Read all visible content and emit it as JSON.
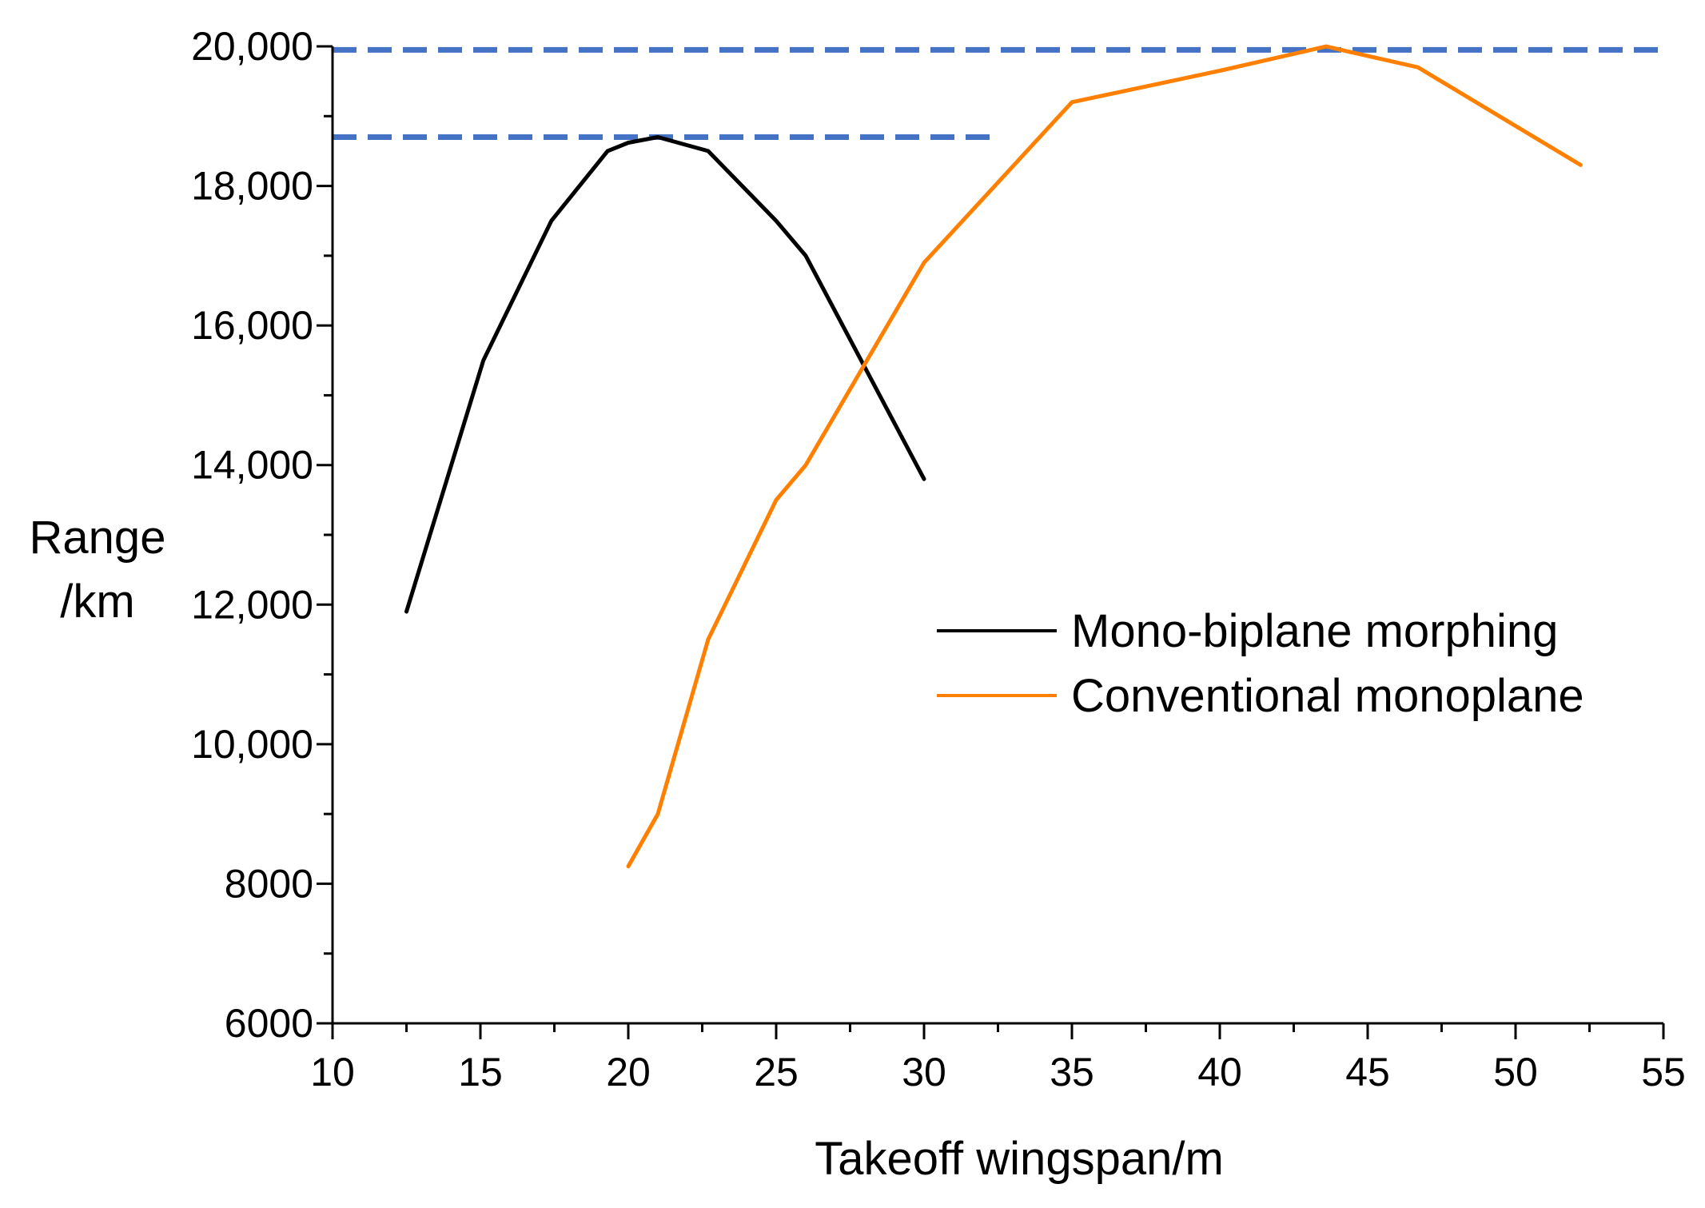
{
  "chart_data": {
    "type": "line",
    "title": "",
    "xlabel": "Takeoff wingspan/m",
    "ylabel": [
      "Range",
      "/km"
    ],
    "xlim": [
      10,
      55
    ],
    "ylim": [
      6000,
      20000
    ],
    "x_ticks": [
      10,
      15,
      20,
      25,
      30,
      35,
      40,
      45,
      50,
      55
    ],
    "x_tick_labels": [
      "10",
      "15",
      "20",
      "25",
      "30",
      "35",
      "40",
      "45",
      "50",
      "55"
    ],
    "y_ticks": [
      6000,
      8000,
      10000,
      12000,
      14000,
      16000,
      18000,
      20000
    ],
    "y_tick_labels": [
      "6000",
      "8000",
      "10,000",
      "12,000",
      "14,000",
      "16,000",
      "18,000",
      "20,000"
    ],
    "grid": false,
    "legend_position": "center-right",
    "series": [
      {
        "name": "Mono-biplane morphing",
        "color": "#000000",
        "x": [
          12.5,
          15.1,
          17.4,
          19.3,
          20.0,
          21.0,
          22.7,
          25.0,
          26.0,
          30.0
        ],
        "y": [
          11900,
          15500,
          17500,
          18500,
          18620,
          18700,
          18500,
          17500,
          17000,
          13800
        ]
      },
      {
        "name": "Conventional monoplane",
        "color": "#ff8000",
        "x": [
          20.0,
          21.0,
          22.7,
          25.0,
          26.0,
          30.0,
          35.0,
          40.0,
          43.6,
          44.1,
          46.7,
          52.2
        ],
        "y": [
          8250,
          9000,
          11500,
          13500,
          14000,
          16900,
          19200,
          19650,
          20000,
          19950,
          19700,
          18300
        ]
      }
    ],
    "reference_lines": [
      {
        "name": "max-range-conventional",
        "y": 19950,
        "x_start": 10,
        "x_end": 55,
        "color": "#4472c4",
        "style": "dashed"
      },
      {
        "name": "max-range-morphing",
        "y": 18700,
        "x_start": 10,
        "x_end": 32.3,
        "color": "#4472c4",
        "style": "dashed"
      }
    ]
  }
}
